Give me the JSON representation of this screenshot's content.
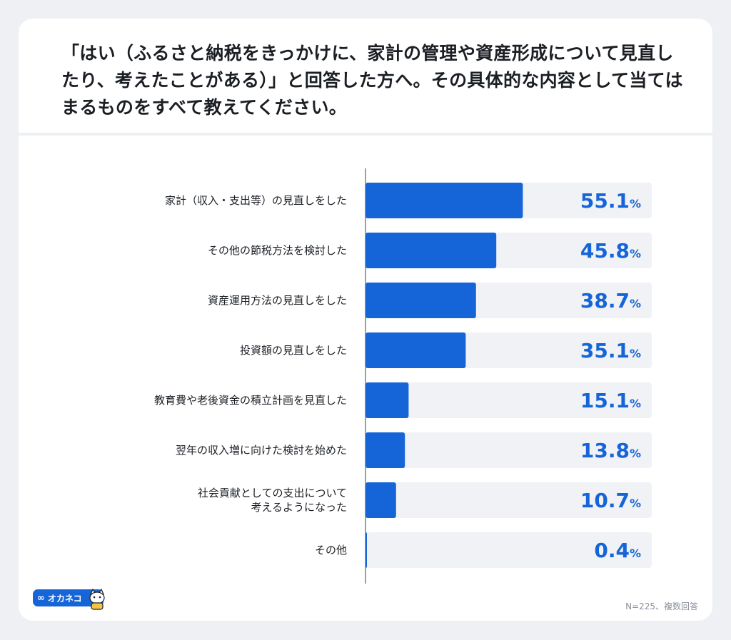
{
  "question": "「はい（ふるさと納税をきっかけに、家計の管理や資産形成について見直したり、考えたことがある）」と回答した方へ。その具体的な内容として当てはまるものをすべて教えてください。",
  "logo": {
    "text": "オカネコ",
    "mark": "∞"
  },
  "footnote": "N=225、複数回答",
  "colors": {
    "bar": "#1565d8",
    "track": "#f0f2f5",
    "value": "#1565d8"
  },
  "chart_data": {
    "type": "bar",
    "orientation": "horizontal",
    "categories": [
      [
        "家計（収入・支出等）の見直しをした"
      ],
      [
        "その他の節税方法を検討した"
      ],
      [
        "資産運用方法の見直しをした"
      ],
      [
        "投資額の見直しをした"
      ],
      [
        "教育費や老後資金の積立計画を見直した"
      ],
      [
        "翌年の収入増に向けた検討を始めた"
      ],
      [
        "社会貢献としての支出について",
        "考えるようになった"
      ],
      [
        "その他"
      ]
    ],
    "values": [
      55.1,
      45.8,
      38.7,
      35.1,
      15.1,
      13.8,
      10.7,
      0.4
    ],
    "value_labels": [
      "55.1",
      "45.8",
      "38.7",
      "35.1",
      "15.1",
      "13.8",
      "10.7",
      "0.4"
    ],
    "unit": "%",
    "xlim": [
      0,
      100
    ],
    "grid": false,
    "legend": "none"
  }
}
